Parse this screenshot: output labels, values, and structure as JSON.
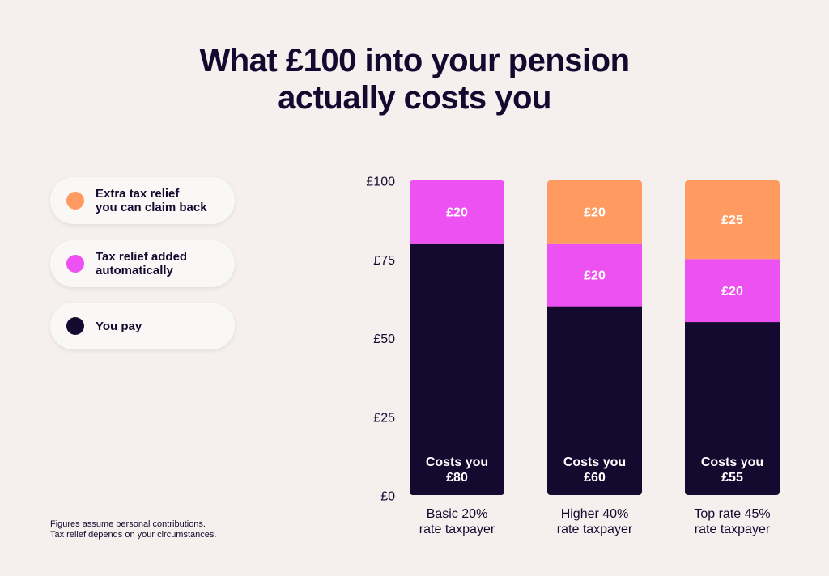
{
  "title_lines": [
    "What £100 into your pension",
    "actually costs you"
  ],
  "legend": [
    {
      "label_lines": [
        "Extra tax relief",
        "you can claim back"
      ],
      "color": "#ff9b61"
    },
    {
      "label_lines": [
        "Tax relief added",
        "automatically"
      ],
      "color": "#ee51f2"
    },
    {
      "label_lines": [
        "You pay"
      ],
      "color": "#140a30"
    }
  ],
  "footnote_lines": [
    "Figures assume personal contributions.",
    "Tax relief depends on your circumstances."
  ],
  "colors": {
    "you_pay": "#140a30",
    "relief_auto": "#ee51f2",
    "relief_extra": "#ff9b61",
    "background": "#f5f0ed",
    "text": "#140a30"
  },
  "chart_data": {
    "type": "bar",
    "stacked": true,
    "categories": [
      [
        "Basic 20%",
        "rate taxpayer"
      ],
      [
        "Higher 40%",
        "rate taxpayer"
      ],
      [
        "Top rate 45%",
        "rate taxpayer"
      ]
    ],
    "series": [
      {
        "name": "You pay",
        "values": [
          80,
          60,
          55
        ],
        "color": "#140a30",
        "labels": [
          [
            "Costs you",
            "£80"
          ],
          [
            "Costs you",
            "£60"
          ],
          [
            "Costs you",
            "£55"
          ]
        ]
      },
      {
        "name": "Tax relief added automatically",
        "values": [
          20,
          20,
          20
        ],
        "color": "#ee51f2",
        "labels": [
          [
            "£20"
          ],
          [
            "£20"
          ],
          [
            "£20"
          ]
        ]
      },
      {
        "name": "Extra tax relief you can claim back",
        "values": [
          0,
          20,
          25
        ],
        "color": "#ff9b61",
        "labels": [
          [],
          [
            "£20"
          ],
          [
            "£25"
          ]
        ]
      }
    ],
    "yticks": [
      "£0",
      "£25",
      "£50",
      "£75",
      "£100"
    ],
    "ytick_values": [
      0,
      25,
      50,
      75,
      100
    ],
    "ylim": [
      0,
      100
    ],
    "grid": false,
    "legend_position": "left"
  }
}
